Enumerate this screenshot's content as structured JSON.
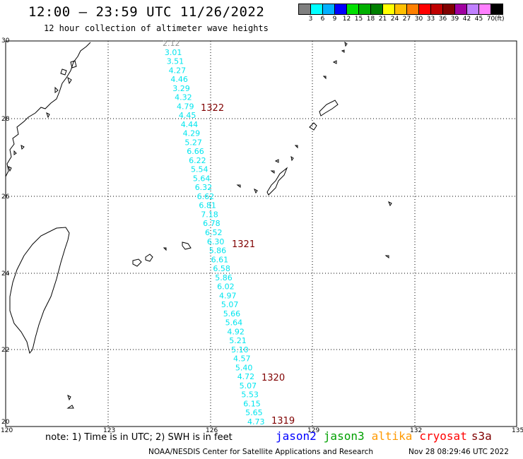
{
  "title": "12:00 – 23:59 UTC 11/26/2022",
  "subtitle": "12 hour collection of altimeter wave heights",
  "color_scale": {
    "unit": "(ft)",
    "colors": [
      "#7f7f7f",
      "#00ffff",
      "#00b0ff",
      "#0000ff",
      "#00e000",
      "#00b000",
      "#008000",
      "#ffff00",
      "#ffc000",
      "#ff8000",
      "#ff0000",
      "#c00000",
      "#800000",
      "#a000a0",
      "#c080ff",
      "#ff80ff",
      "#000000"
    ],
    "labels": [
      "3",
      "6",
      "9",
      "12",
      "15",
      "18",
      "21",
      "24",
      "27",
      "30",
      "33",
      "36",
      "39",
      "42",
      "45",
      "70"
    ]
  },
  "map": {
    "lon_labels": [
      "120",
      "123",
      "126",
      "129",
      "132",
      "135"
    ],
    "lat_labels": [
      "30",
      "28",
      "26",
      "24",
      "22",
      "20"
    ],
    "wave_heights": [
      "2.12",
      "3.01",
      "3.51",
      "4.27",
      "4.46",
      "3.29",
      "4.32",
      "4.79",
      "4.45",
      "4.44",
      "4.29",
      "5.27",
      "6.66",
      "6.22",
      "5.54",
      "5.64",
      "6.32",
      "6.62",
      "6.81",
      "7.18",
      "6.78",
      "6.52",
      "6.30",
      "5.86",
      "6.61",
      "6.58",
      "5.86",
      "6.02",
      "4.97",
      "5.07",
      "5.66",
      "5.64",
      "4.92",
      "5.21",
      "5.10",
      "4.57",
      "5.40",
      "4.72",
      "5.07",
      "5.53",
      "6.15",
      "5.65",
      "4.73"
    ],
    "wave_color": "#00e5ee",
    "first_value_color": "#909090",
    "track_color": "#800000",
    "track_times": [
      "1322",
      "1321",
      "1320",
      "1319"
    ]
  },
  "footer": {
    "note": "note: 1) Time is in UTC; 2) SWH is in feet",
    "satellites": [
      {
        "name": "jason2",
        "color": "#0000ff"
      },
      {
        "name": "jason3",
        "color": "#00a000"
      },
      {
        "name": "altika",
        "color": "#ff9900"
      },
      {
        "name": "cryosat",
        "color": "#ff0000"
      },
      {
        "name": "s3a",
        "color": "#800000"
      }
    ],
    "credit": "NOAA/NESDIS Center for Satellite Applications and Research",
    "timestamp": "Nov 28 08:29:46 UTC 2022"
  }
}
